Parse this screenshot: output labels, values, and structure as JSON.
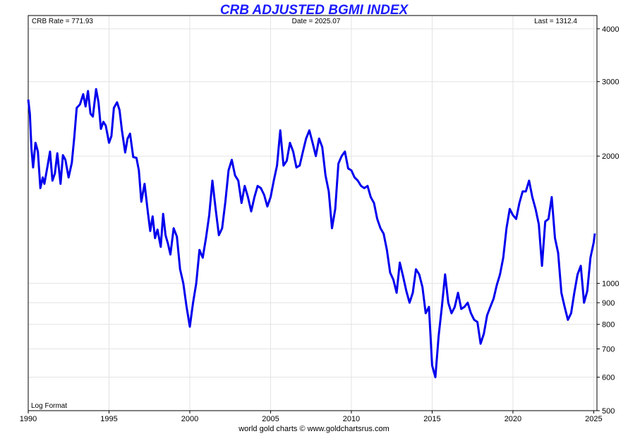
{
  "chart_data": {
    "type": "line",
    "title": "CRB ADJUSTED BGMI INDEX",
    "info": {
      "crb_rate": "CRB Rate = 771.93",
      "date": "Date = 2025.07",
      "last": "Last = 1312.4"
    },
    "scale_note": "Log Format",
    "footer": "world gold charts © www.goldchartsrus.com",
    "y_scale": "log",
    "ylim": [
      500,
      4300
    ],
    "xlim": [
      1990,
      2025.2
    ],
    "x_ticks": [
      1990,
      1995,
      2000,
      2005,
      2010,
      2015,
      2020,
      2025
    ],
    "y_ticks": [
      500,
      600,
      700,
      800,
      900,
      1000,
      2000,
      3000,
      4000
    ],
    "grid": true,
    "legend": "none",
    "color": "#0000ee",
    "series": [
      {
        "x": [
          1990.0,
          1990.1,
          1990.2,
          1990.3,
          1990.45,
          1990.6,
          1990.75,
          1990.9,
          1991.0,
          1991.2,
          1991.35,
          1991.5,
          1991.65,
          1991.8,
          1992.0,
          1992.15,
          1992.3,
          1992.5,
          1992.7,
          1992.85,
          1993.0,
          1993.2,
          1993.4,
          1993.55,
          1993.7,
          1993.85,
          1994.0,
          1994.2,
          1994.35,
          1994.5,
          1994.65,
          1994.8,
          1995.0,
          1995.15,
          1995.3,
          1995.5,
          1995.65,
          1995.8,
          1996.0,
          1996.15,
          1996.3,
          1996.5,
          1996.7,
          1996.85,
          1997.0,
          1997.2,
          1997.4,
          1997.55,
          1997.7,
          1997.85,
          1998.0,
          1998.2,
          1998.35,
          1998.5,
          1998.65,
          1998.8,
          1999.0,
          1999.2,
          1999.4,
          1999.6,
          1999.8,
          2000.0,
          2000.2,
          2000.4,
          2000.6,
          2000.8,
          2001.0,
          2001.2,
          2001.4,
          2001.6,
          2001.8,
          2002.0,
          2002.2,
          2002.4,
          2002.6,
          2002.8,
          2003.0,
          2003.2,
          2003.4,
          2003.6,
          2003.8,
          2004.0,
          2004.2,
          2004.4,
          2004.6,
          2004.8,
          2005.0,
          2005.2,
          2005.4,
          2005.6,
          2005.8,
          2006.0,
          2006.2,
          2006.4,
          2006.6,
          2006.8,
          2007.0,
          2007.2,
          2007.4,
          2007.6,
          2007.8,
          2008.0,
          2008.2,
          2008.4,
          2008.6,
          2008.8,
          2009.0,
          2009.2,
          2009.4,
          2009.6,
          2009.8,
          2010.0,
          2010.2,
          2010.4,
          2010.6,
          2010.8,
          2011.0,
          2011.2,
          2011.4,
          2011.6,
          2011.8,
          2012.0,
          2012.2,
          2012.4,
          2012.6,
          2012.8,
          2013.0,
          2013.2,
          2013.4,
          2013.6,
          2013.8,
          2014.0,
          2014.2,
          2014.4,
          2014.6,
          2014.8,
          2015.0,
          2015.2,
          2015.4,
          2015.6,
          2015.8,
          2016.0,
          2016.2,
          2016.4,
          2016.6,
          2016.8,
          2017.0,
          2017.2,
          2017.4,
          2017.6,
          2017.8,
          2018.0,
          2018.2,
          2018.4,
          2018.6,
          2018.8,
          2019.0,
          2019.2,
          2019.4,
          2019.6,
          2019.8,
          2020.0,
          2020.2,
          2020.4,
          2020.6,
          2020.8,
          2021.0,
          2021.2,
          2021.4,
          2021.6,
          2021.8,
          2022.0,
          2022.2,
          2022.4,
          2022.6,
          2022.8,
          2023.0,
          2023.2,
          2023.4,
          2023.6,
          2023.8,
          2024.0,
          2024.2,
          2024.4,
          2024.6,
          2024.8,
          2025.0,
          2025.07
        ],
        "y": [
          2720,
          2520,
          2080,
          1880,
          2150,
          2050,
          1680,
          1780,
          1720,
          1900,
          2050,
          1750,
          1820,
          2030,
          1720,
          2010,
          1960,
          1780,
          1930,
          2220,
          2600,
          2650,
          2800,
          2620,
          2850,
          2520,
          2480,
          2880,
          2680,
          2320,
          2410,
          2360,
          2150,
          2230,
          2600,
          2680,
          2570,
          2300,
          2040,
          2200,
          2260,
          1990,
          1980,
          1850,
          1560,
          1720,
          1480,
          1330,
          1440,
          1280,
          1340,
          1220,
          1460,
          1300,
          1240,
          1170,
          1350,
          1290,
          1080,
          1000,
          880,
          790,
          900,
          1000,
          1200,
          1150,
          1280,
          1450,
          1750,
          1500,
          1300,
          1350,
          1560,
          1850,
          1960,
          1800,
          1750,
          1550,
          1700,
          1600,
          1480,
          1600,
          1700,
          1680,
          1620,
          1520,
          1600,
          1750,
          1900,
          2300,
          1900,
          1950,
          2150,
          2050,
          1880,
          1900,
          2050,
          2200,
          2300,
          2150,
          2000,
          2200,
          2100,
          1800,
          1650,
          1350,
          1500,
          1920,
          2000,
          2050,
          1870,
          1850,
          1780,
          1750,
          1700,
          1680,
          1700,
          1600,
          1550,
          1420,
          1350,
          1310,
          1200,
          1060,
          1020,
          950,
          1120,
          1040,
          960,
          900,
          950,
          1080,
          1050,
          980,
          850,
          880,
          640,
          600,
          750,
          880,
          1050,
          900,
          850,
          880,
          950,
          870,
          880,
          900,
          850,
          820,
          810,
          720,
          760,
          840,
          880,
          920,
          990,
          1050,
          1150,
          1350,
          1500,
          1450,
          1420,
          1550,
          1650,
          1650,
          1750,
          1600,
          1500,
          1380,
          1100,
          1400,
          1420,
          1600,
          1280,
          1180,
          950,
          880,
          820,
          850,
          950,
          1050,
          1100,
          900,
          960,
          1150,
          1250,
          1312
        ]
      }
    ]
  }
}
